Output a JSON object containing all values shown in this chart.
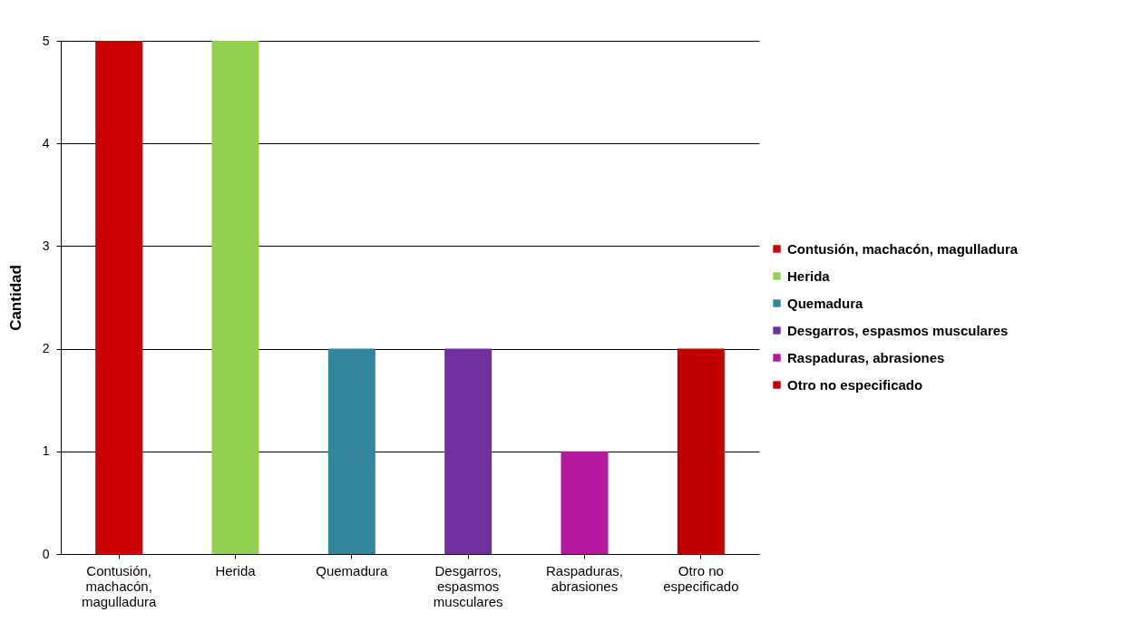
{
  "chart_data": {
    "type": "bar",
    "ylabel": "Cantidad",
    "categories": [
      "Contusión, machacón, magulladura",
      "Herida",
      "Quemadura",
      "Desgarros, espasmos musculares",
      "Raspaduras, abrasiones",
      "Otro no especificado"
    ],
    "series": [
      {
        "name": "Contusión, machacón, magulladura",
        "color": "#cc0000",
        "values": [
          5,
          null,
          null,
          null,
          null,
          null
        ]
      },
      {
        "name": "Herida",
        "color": "#92d050",
        "values": [
          null,
          5,
          null,
          null,
          null,
          null
        ]
      },
      {
        "name": "Quemadura",
        "color": "#31859c",
        "values": [
          null,
          null,
          2,
          null,
          null,
          null
        ]
      },
      {
        "name": "Desgarros, espasmos musculares",
        "color": "#7030a0",
        "values": [
          null,
          null,
          null,
          2,
          null,
          null
        ]
      },
      {
        "name": "Raspaduras, abrasiones",
        "color": "#b5179e",
        "values": [
          null,
          null,
          null,
          null,
          1,
          null
        ]
      },
      {
        "name": "Otro no especificado",
        "color": "#c00000",
        "values": [
          null,
          null,
          null,
          null,
          null,
          2
        ]
      }
    ],
    "stacked": true,
    "ylim": [
      0,
      5
    ],
    "yticks": [
      0,
      1,
      2,
      3,
      4,
      5
    ],
    "grid": "y",
    "legend": "right"
  }
}
